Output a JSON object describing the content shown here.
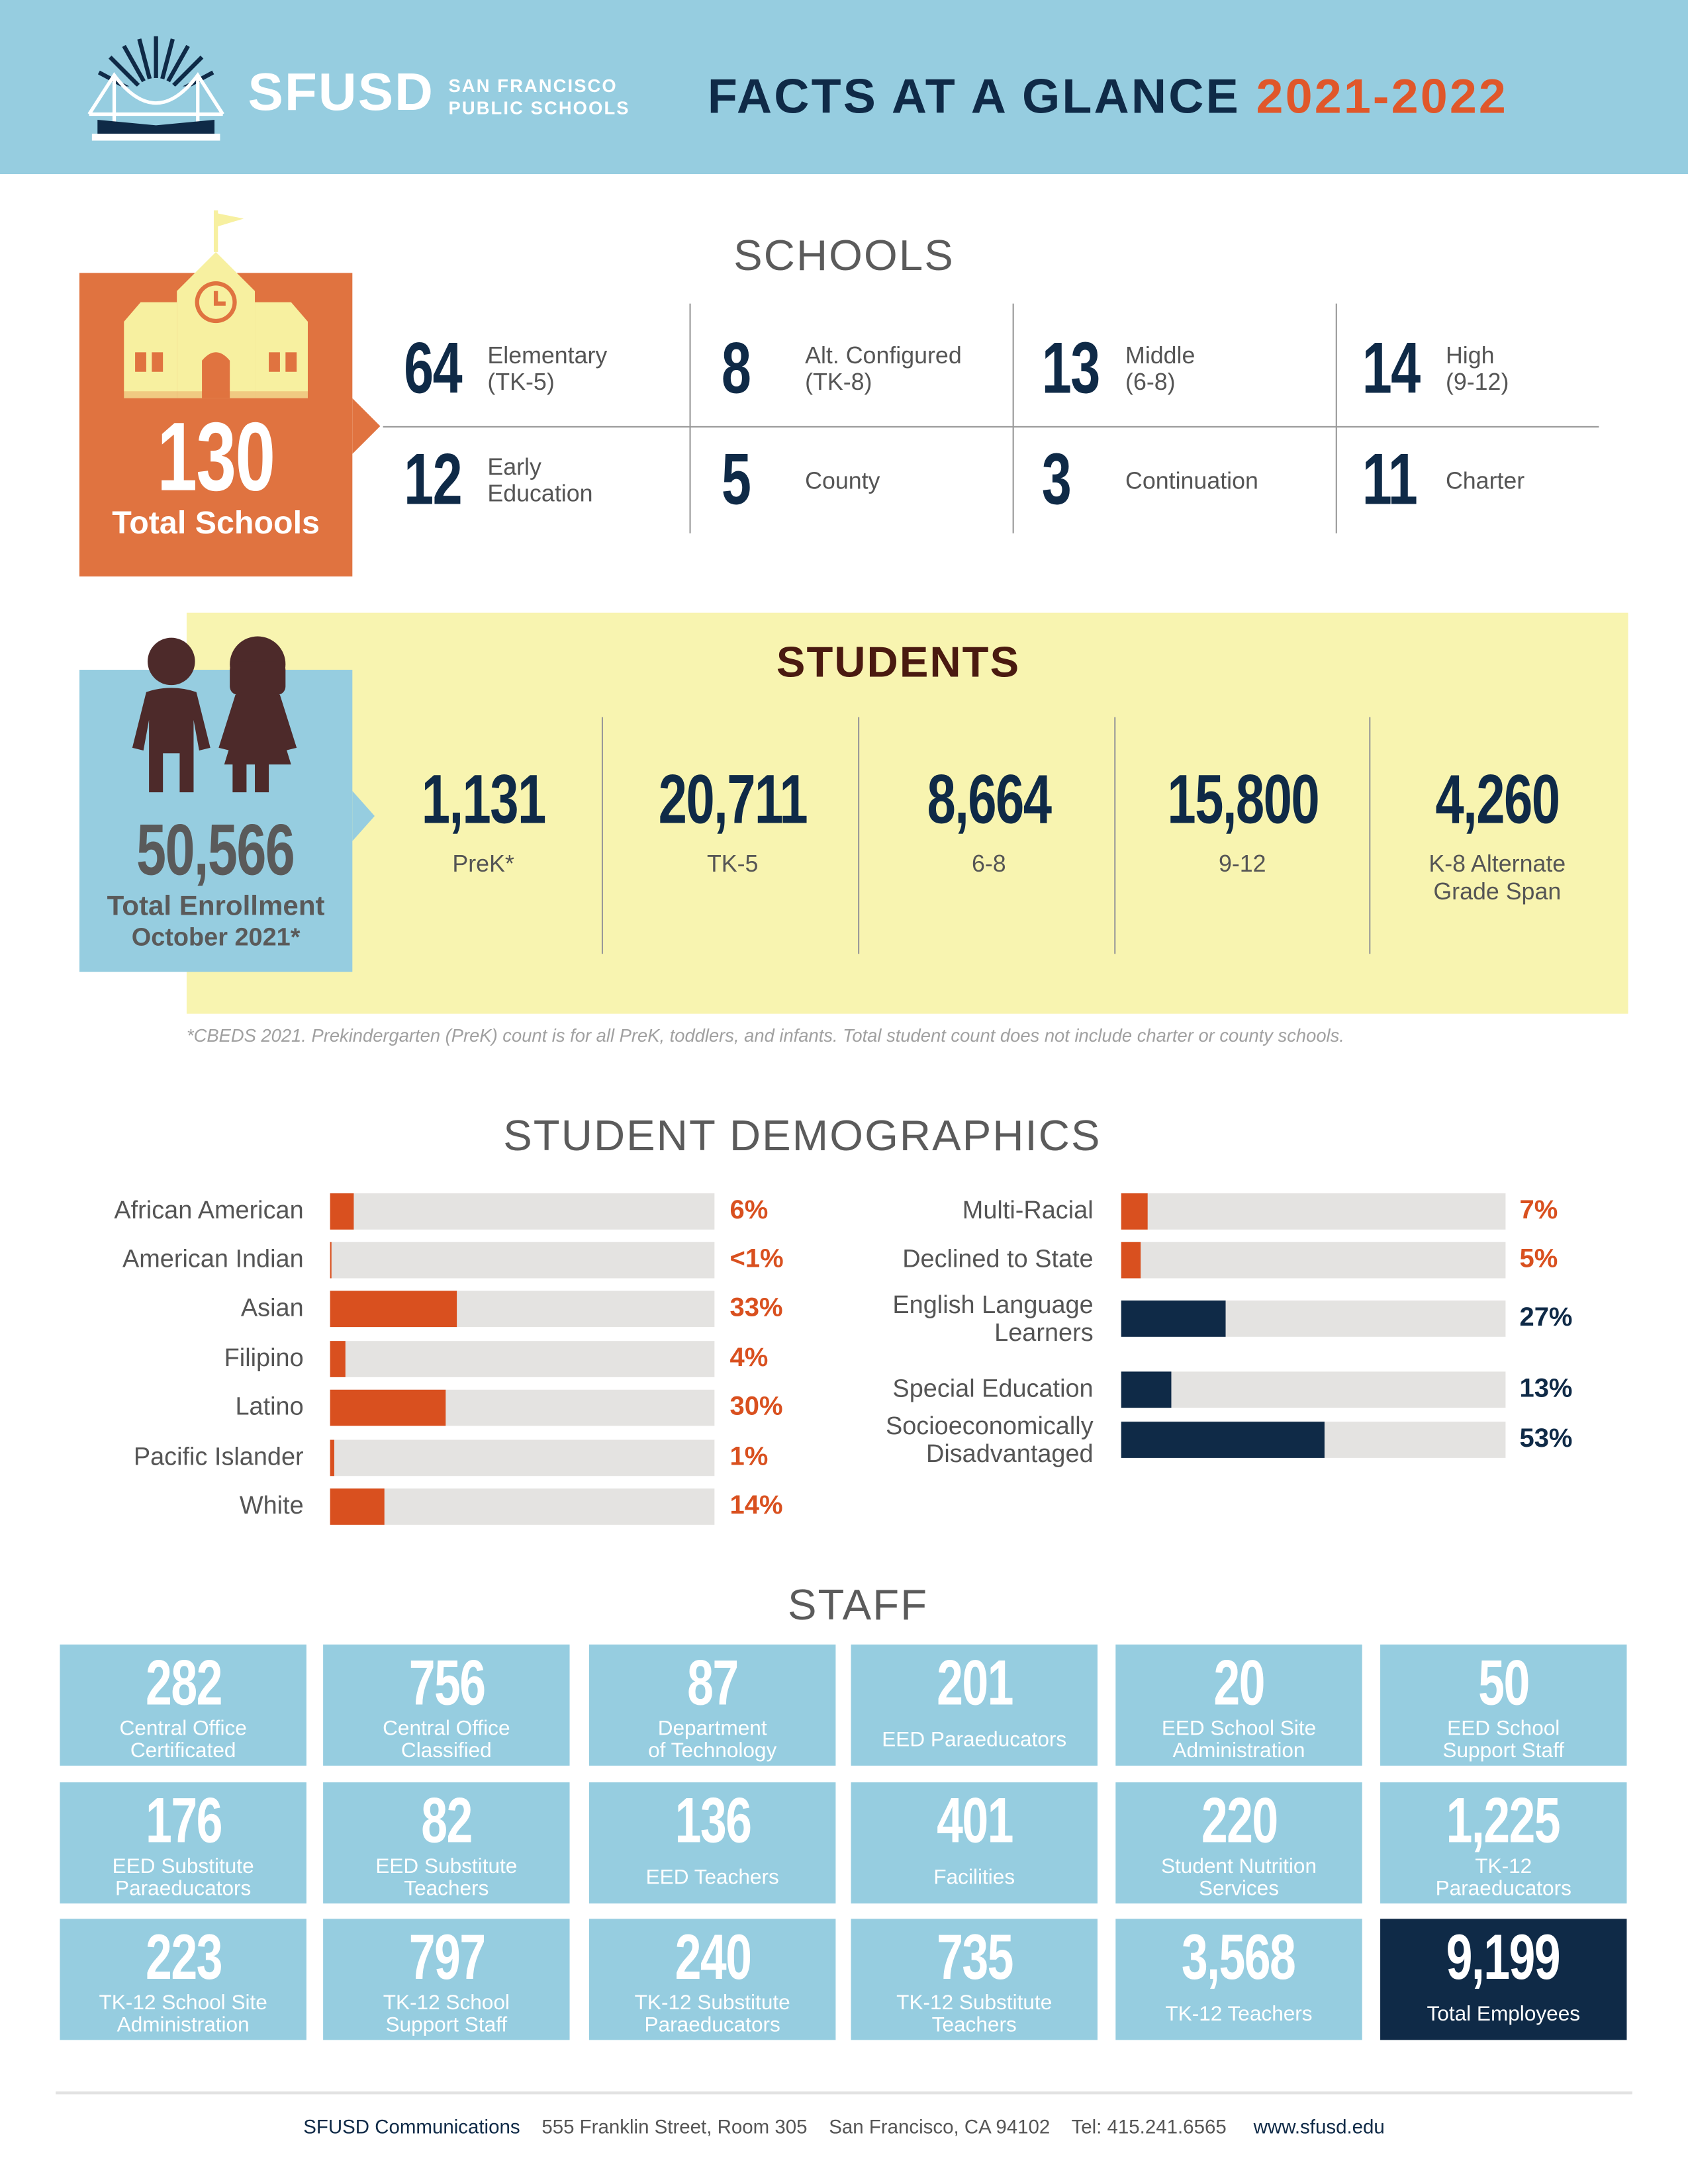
{
  "header": {
    "logo_wordmark": "SFUSD",
    "logo_sub1": "SAN FRANCISCO",
    "logo_sub2": "PUBLIC SCHOOLS",
    "title": "FACTS AT A GLANCE",
    "year": "2021-2022"
  },
  "schools": {
    "title": "SCHOOLS",
    "total": "130",
    "total_label": "Total Schools",
    "items": [
      {
        "num": "64",
        "label": "Elementary\n(TK-5)"
      },
      {
        "num": "8",
        "label": "Alt. Configured\n(TK-8)"
      },
      {
        "num": "13",
        "label": "Middle\n(6-8)"
      },
      {
        "num": "14",
        "label": "High\n(9-12)"
      },
      {
        "num": "12",
        "label": "Early\nEducation"
      },
      {
        "num": "5",
        "label": "County"
      },
      {
        "num": "3",
        "label": "Continuation"
      },
      {
        "num": "11",
        "label": "Charter"
      }
    ]
  },
  "students": {
    "title": "STUDENTS",
    "total": "50,566",
    "total_label1": "Total Enrollment",
    "total_label2": "October 2021*",
    "items": [
      {
        "num": "1,131",
        "label": "PreK*"
      },
      {
        "num": "20,711",
        "label": "TK-5"
      },
      {
        "num": "8,664",
        "label": "6-8"
      },
      {
        "num": "15,800",
        "label": "9-12"
      },
      {
        "num": "4,260",
        "label": "K-8 Alternate\nGrade Span"
      }
    ],
    "footnote": "*CBEDS 2021. Prekindergarten (PreK) count is for all PreK, toddlers, and infants. Total student count does not include charter or county schools."
  },
  "demographics": {
    "title": "STUDENT DEMOGRAPHICS",
    "colors": {
      "orange": "#d9501f",
      "navy": "#0f2a47",
      "track": "#e4e3e1"
    },
    "left": [
      {
        "label": "African American",
        "value": 6,
        "pct": "6%"
      },
      {
        "label": "American Indian",
        "value": 0.5,
        "pct": "<1%"
      },
      {
        "label": "Asian",
        "value": 33,
        "pct": "33%"
      },
      {
        "label": "Filipino",
        "value": 4,
        "pct": "4%"
      },
      {
        "label": "Latino",
        "value": 30,
        "pct": "30%"
      },
      {
        "label": "Pacific Islander",
        "value": 1,
        "pct": "1%"
      },
      {
        "label": "White",
        "value": 14,
        "pct": "14%"
      }
    ],
    "right": [
      {
        "label": "Multi-Racial",
        "value": 7,
        "pct": "7%",
        "color": "orange"
      },
      {
        "label": "Declined to State",
        "value": 5,
        "pct": "5%",
        "color": "orange"
      },
      {
        "label": "English Language\nLearners",
        "value": 27,
        "pct": "27%",
        "color": "navy"
      },
      {
        "label": "Special Education",
        "value": 13,
        "pct": "13%",
        "color": "navy"
      },
      {
        "label": "Socioeconomically\nDisadvantaged",
        "value": 53,
        "pct": "53%",
        "color": "navy"
      }
    ]
  },
  "staff": {
    "title": "STAFF",
    "tiles": [
      {
        "num": "282",
        "label": "Central Office\nCertificated"
      },
      {
        "num": "756",
        "label": "Central Office\nClassified"
      },
      {
        "num": "87",
        "label": "Department\nof Technology"
      },
      {
        "num": "201",
        "label": "EED Paraeducators"
      },
      {
        "num": "20",
        "label": "EED School Site\nAdministration"
      },
      {
        "num": "50",
        "label": "EED School\nSupport Staff"
      },
      {
        "num": "176",
        "label": "EED Substitute\nParaeducators"
      },
      {
        "num": "82",
        "label": "EED Substitute\nTeachers"
      },
      {
        "num": "136",
        "label": "EED Teachers"
      },
      {
        "num": "401",
        "label": "Facilities"
      },
      {
        "num": "220",
        "label": "Student Nutrition\nServices"
      },
      {
        "num": "1,225",
        "label": "TK-12\nParaeducators"
      },
      {
        "num": "223",
        "label": "TK-12 School Site\nAdministration"
      },
      {
        "num": "797",
        "label": "TK-12 School\nSupport Staff"
      },
      {
        "num": "240",
        "label": "TK-12 Substitute\nParaeducators"
      },
      {
        "num": "735",
        "label": "TK-12 Substitute\nTeachers"
      },
      {
        "num": "3,568",
        "label": "TK-12 Teachers"
      },
      {
        "num": "9,199",
        "label": "Total Employees"
      }
    ]
  },
  "footer": {
    "org": "SFUSD Communications",
    "address": "555 Franklin Street, Room 305",
    "city": "San Francisco, CA 94102",
    "tel": "Tel: 415.241.6565",
    "web": "www.sfusd.edu"
  }
}
